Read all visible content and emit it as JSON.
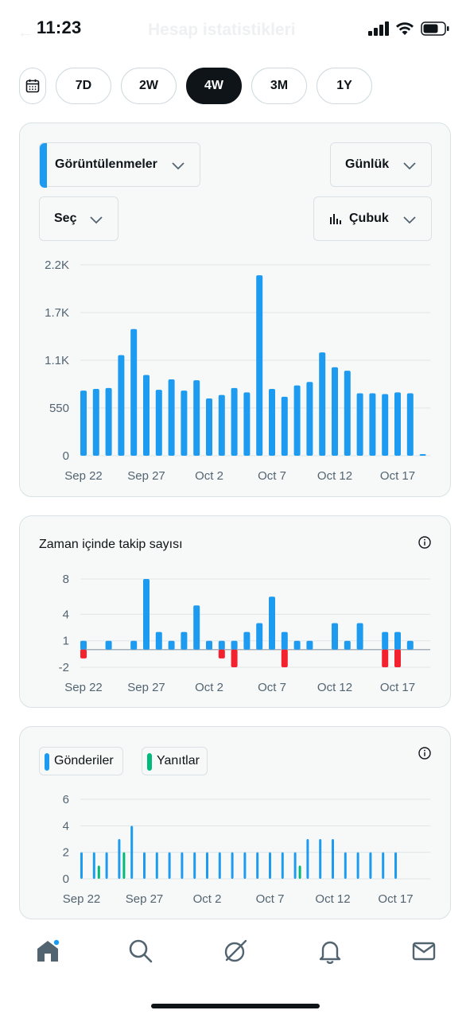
{
  "status_bar": {
    "time": "11:23"
  },
  "header": {
    "title": "Hesap istatistikleri"
  },
  "range_selector": {
    "options": [
      "7D",
      "2W",
      "4W",
      "3M",
      "1Y"
    ],
    "selected": "4W"
  },
  "impressions_card": {
    "metric_select": "Görüntülenmeler",
    "interval_select": "Günlük",
    "compare_select": "Seç",
    "chart_type_select": "Çubuk"
  },
  "followers_card": {
    "title": "Zaman içinde takip sayısı"
  },
  "posts_card": {
    "legend": [
      {
        "label": "Gönderiler",
        "color": "#1d9bf0"
      },
      {
        "label": "Yanıtlar",
        "color": "#00ba7c"
      }
    ]
  },
  "colors": {
    "blue": "#1d9bf0",
    "green": "#00ba7c",
    "red": "#f4212e",
    "dark": "#0f1419"
  },
  "chart_data": [
    {
      "type": "bar",
      "title": "",
      "x": [
        "Sep 22",
        "Sep 23",
        "Sep 24",
        "Sep 25",
        "Sep 26",
        "Sep 27",
        "Sep 28",
        "Sep 29",
        "Sep 30",
        "Oct 1",
        "Oct 2",
        "Oct 3",
        "Oct 4",
        "Oct 5",
        "Oct 6",
        "Oct 7",
        "Oct 8",
        "Oct 9",
        "Oct 10",
        "Oct 11",
        "Oct 12",
        "Oct 13",
        "Oct 14",
        "Oct 15",
        "Oct 16",
        "Oct 17",
        "Oct 18",
        "Oct 19"
      ],
      "series": [
        {
          "values": [
            750,
            770,
            780,
            1160,
            1460,
            930,
            760,
            880,
            750,
            870,
            660,
            700,
            780,
            730,
            2080,
            770,
            680,
            810,
            850,
            1190,
            1020,
            980,
            720,
            720,
            710,
            730,
            720,
            15
          ],
          "color": "#1d9bf0"
        }
      ],
      "y_ticks": [
        "2.2K",
        "1.7K",
        "1.1K",
        "550",
        "0"
      ],
      "y_tick_values": [
        2200,
        1650,
        1100,
        550,
        0
      ],
      "x_tick_labels": [
        "Sep 22",
        "Sep 27",
        "Oct 2",
        "Oct 7",
        "Oct 12",
        "Oct 17"
      ],
      "ylim": [
        0,
        2200
      ]
    },
    {
      "type": "bar",
      "title": "Zaman içinde takip sayısı",
      "x": [
        "Sep 22",
        "Sep 23",
        "Sep 24",
        "Sep 25",
        "Sep 26",
        "Sep 27",
        "Sep 28",
        "Sep 29",
        "Sep 30",
        "Oct 1",
        "Oct 2",
        "Oct 3",
        "Oct 4",
        "Oct 5",
        "Oct 6",
        "Oct 7",
        "Oct 8",
        "Oct 9",
        "Oct 10",
        "Oct 11",
        "Oct 12",
        "Oct 13",
        "Oct 14",
        "Oct 15",
        "Oct 16",
        "Oct 17",
        "Oct 18",
        "Oct 19"
      ],
      "series": [
        {
          "name": "gains",
          "values": [
            1,
            0,
            1,
            0,
            1,
            8,
            2,
            1,
            2,
            5,
            1,
            1,
            1,
            2,
            3,
            6,
            2,
            1,
            1,
            0,
            3,
            1,
            3,
            0,
            2,
            2,
            1,
            0
          ],
          "color": "#1d9bf0"
        },
        {
          "name": "losses",
          "values": [
            -1,
            0,
            0,
            0,
            0,
            0,
            0,
            0,
            0,
            0,
            0,
            -1,
            -2,
            0,
            0,
            0,
            -2,
            0,
            0,
            0,
            0,
            0,
            0,
            0,
            -2,
            -2,
            0,
            0
          ],
          "color": "#f4212e"
        }
      ],
      "y_ticks": [
        "8",
        "4",
        "1",
        "-2"
      ],
      "y_tick_values": [
        8,
        4,
        1,
        -2
      ],
      "x_tick_labels": [
        "Sep 22",
        "Sep 27",
        "Oct 2",
        "Oct 7",
        "Oct 12",
        "Oct 17"
      ],
      "ylim": [
        -2,
        8
      ]
    },
    {
      "type": "bar",
      "title": "",
      "x": [
        "Sep 22",
        "Sep 23",
        "Sep 24",
        "Sep 25",
        "Sep 26",
        "Sep 27",
        "Sep 28",
        "Sep 29",
        "Sep 30",
        "Oct 1",
        "Oct 2",
        "Oct 3",
        "Oct 4",
        "Oct 5",
        "Oct 6",
        "Oct 7",
        "Oct 8",
        "Oct 9",
        "Oct 10",
        "Oct 11",
        "Oct 12",
        "Oct 13",
        "Oct 14",
        "Oct 15",
        "Oct 16",
        "Oct 17",
        "Oct 18",
        "Oct 19"
      ],
      "series": [
        {
          "name": "Gönderiler",
          "values": [
            2,
            2,
            2,
            3,
            4,
            2,
            2,
            2,
            2,
            2,
            2,
            2,
            2,
            2,
            2,
            2,
            2,
            2,
            3,
            3,
            3,
            2,
            2,
            2,
            2,
            2,
            0,
            0
          ],
          "color": "#1d9bf0"
        },
        {
          "name": "Yanıtlar",
          "values": [
            0,
            1,
            0,
            2,
            0,
            0,
            0,
            0,
            0,
            0,
            0,
            0,
            0,
            0,
            0,
            0,
            0,
            1,
            0,
            0,
            0,
            0,
            0,
            0,
            0,
            0,
            0,
            0
          ],
          "color": "#00ba7c"
        }
      ],
      "y_ticks": [
        "6",
        "4",
        "2",
        "0"
      ],
      "y_tick_values": [
        6,
        4,
        2,
        0
      ],
      "x_tick_labels": [
        "Sep 22",
        "Sep 27",
        "Oct 2",
        "Oct 7",
        "Oct 12",
        "Oct 17"
      ],
      "ylim": [
        0,
        6
      ]
    }
  ]
}
